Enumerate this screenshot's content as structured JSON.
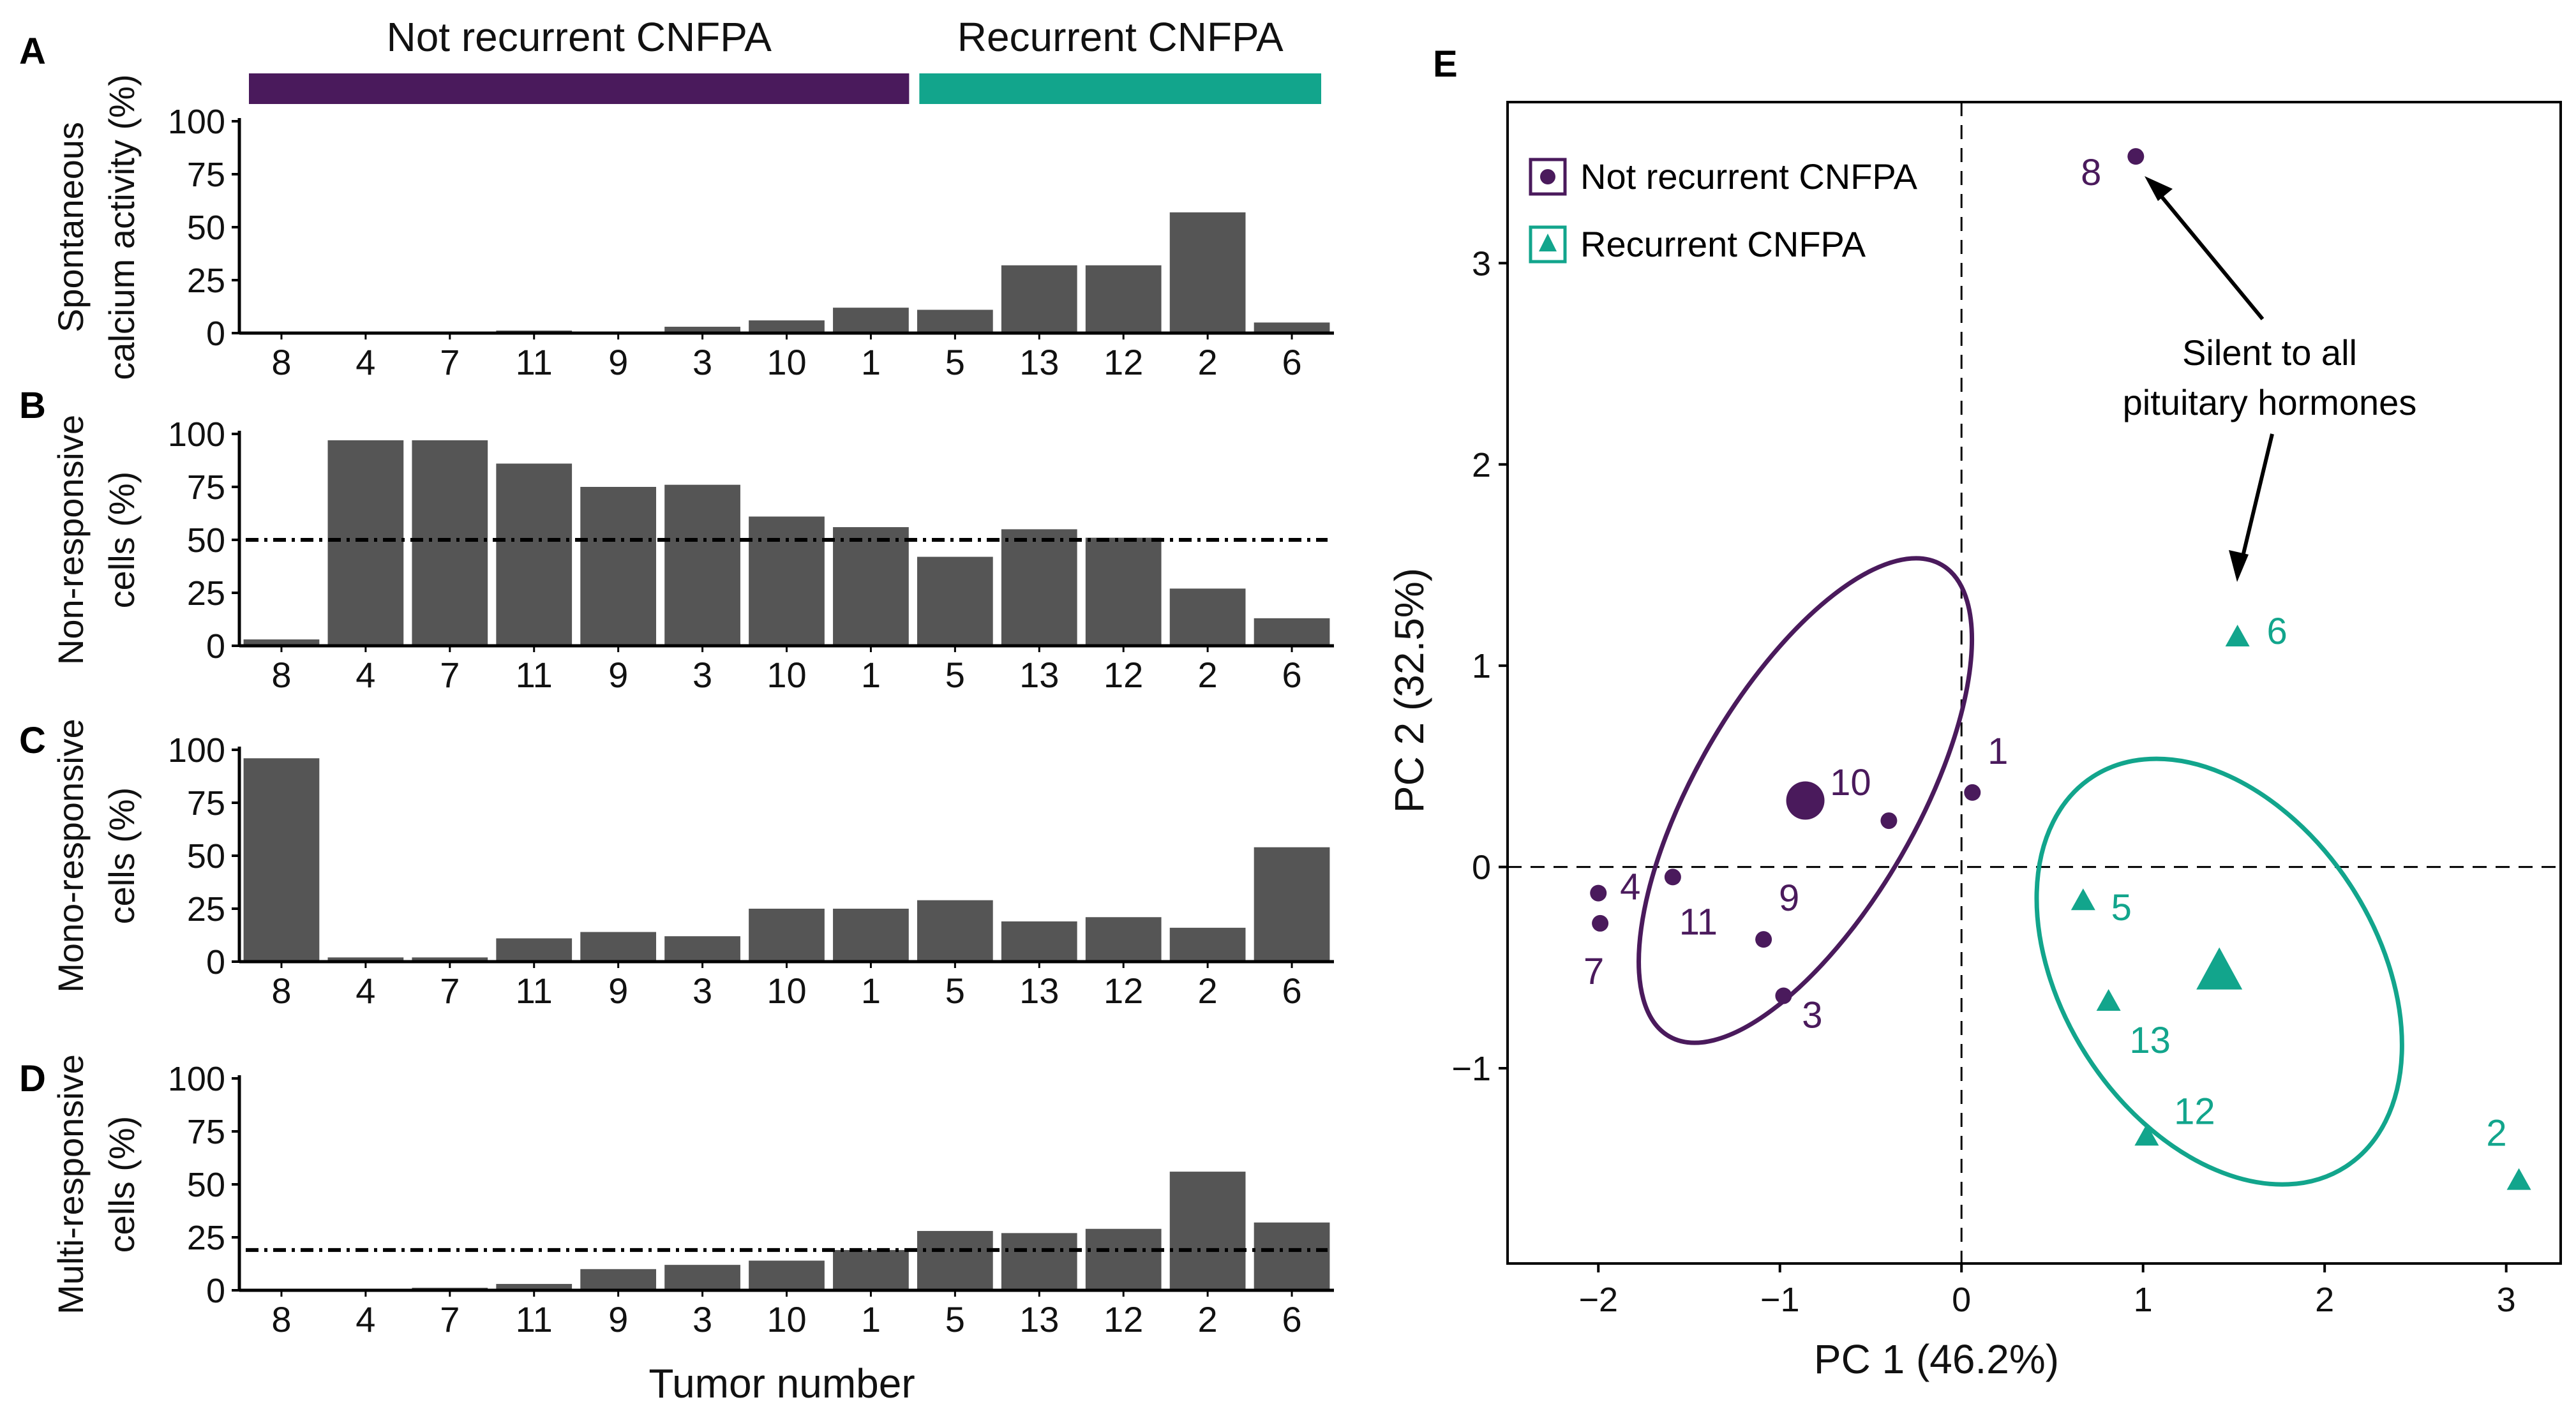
{
  "colors": {
    "not_recurrent": "#4a1a5c",
    "recurrent": "#12a58c",
    "bar": "#555555",
    "axis": "#000000"
  },
  "chart_data": [
    {
      "panel": "A",
      "type": "bar",
      "ylabel": [
        "Spontaneous",
        "calcium activity (%)"
      ],
      "ylim": [
        0,
        100
      ],
      "yticks": [
        0,
        25,
        50,
        75,
        100
      ],
      "categories": [
        "8",
        "4",
        "7",
        "11",
        "9",
        "3",
        "10",
        "1",
        "5",
        "13",
        "12",
        "2",
        "6"
      ],
      "values": [
        0,
        0,
        0,
        1,
        0,
        3,
        6,
        12,
        11,
        32,
        32,
        57,
        5
      ],
      "group_bar": [
        {
          "label": "Not recurrent CNFPA",
          "from": 0,
          "to": 7,
          "color": "not_recurrent"
        },
        {
          "label": "Recurrent CNFPA",
          "from": 8,
          "to": 12,
          "color": "recurrent"
        }
      ]
    },
    {
      "panel": "B",
      "type": "bar",
      "ylabel": [
        "Non-responsive",
        "cells (%)"
      ],
      "ylim": [
        0,
        100
      ],
      "yticks": [
        0,
        25,
        50,
        75,
        100
      ],
      "categories": [
        "8",
        "4",
        "7",
        "11",
        "9",
        "3",
        "10",
        "1",
        "5",
        "13",
        "12",
        "2",
        "6"
      ],
      "values": [
        3,
        97,
        97,
        86,
        75,
        76,
        61,
        56,
        42,
        55,
        51,
        27,
        13
      ],
      "reference_line": 50
    },
    {
      "panel": "C",
      "type": "bar",
      "ylabel": [
        "Mono-responsive",
        "cells (%)"
      ],
      "ylim": [
        0,
        100
      ],
      "yticks": [
        0,
        25,
        50,
        75,
        100
      ],
      "categories": [
        "8",
        "4",
        "7",
        "11",
        "9",
        "3",
        "10",
        "1",
        "5",
        "13",
        "12",
        "2",
        "6"
      ],
      "values": [
        96,
        2,
        2,
        11,
        14,
        12,
        25,
        25,
        29,
        19,
        21,
        16,
        54
      ]
    },
    {
      "panel": "D",
      "type": "bar",
      "ylabel": [
        "Multi-responsive",
        "cells (%)"
      ],
      "ylim": [
        0,
        100
      ],
      "yticks": [
        0,
        25,
        50,
        75,
        100
      ],
      "categories": [
        "8",
        "4",
        "7",
        "11",
        "9",
        "3",
        "10",
        "1",
        "5",
        "13",
        "12",
        "2",
        "6"
      ],
      "values": [
        0,
        0,
        1,
        3,
        10,
        12,
        14,
        19,
        28,
        27,
        29,
        56,
        32
      ],
      "reference_line": 19,
      "xlabel": "Tumor number"
    },
    {
      "panel": "E",
      "type": "scatter",
      "xlabel": "PC 1 (46.2%)",
      "ylabel": "PC 2 (32.5%)",
      "xlim": [
        -2.5,
        3.3
      ],
      "ylim": [
        -1.97,
        3.8
      ],
      "xticks": [
        -2,
        -1,
        0,
        1,
        2,
        3
      ],
      "xtick_labels": [
        "−2",
        "−1",
        "0",
        "1",
        "2",
        "3"
      ],
      "yticks": [
        -1,
        0,
        1,
        2,
        3
      ],
      "ytick_labels": [
        "−1",
        "0",
        "1",
        "2",
        "3"
      ],
      "legend": [
        {
          "label": "Not recurrent CNFPA",
          "marker": "circle",
          "color": "not_recurrent"
        },
        {
          "label": "Recurrent CNFPA",
          "marker": "triangle",
          "color": "recurrent"
        }
      ],
      "series": [
        {
          "name": "Not recurrent CNFPA",
          "marker": "circle",
          "color": "not_recurrent",
          "points": [
            {
              "label": "8",
              "x": 0.96,
              "y": 3.53
            },
            {
              "label": "1",
              "x": 0.06,
              "y": 0.37
            },
            {
              "label": "10",
              "x": -0.4,
              "y": 0.23
            },
            {
              "label": "4",
              "x": -2.0,
              "y": -0.13
            },
            {
              "label": "7",
              "x": -1.99,
              "y": -0.28
            },
            {
              "label": "11",
              "x": -1.59,
              "y": -0.05
            },
            {
              "label": "9",
              "x": -1.09,
              "y": -0.36
            },
            {
              "label": "3",
              "x": -0.98,
              "y": -0.64
            }
          ],
          "centroid": {
            "x": -0.86,
            "y": 0.33
          },
          "ellipse": {
            "cx": -0.86,
            "cy": 0.33,
            "rx": 1.5,
            "ry": 0.55,
            "angle_deg": 60
          }
        },
        {
          "name": "Recurrent CNFPA",
          "marker": "triangle",
          "color": "recurrent",
          "points": [
            {
              "label": "6",
              "x": 1.52,
              "y": 1.14
            },
            {
              "label": "5",
              "x": 0.67,
              "y": -0.17
            },
            {
              "label": "13",
              "x": 0.81,
              "y": -0.67
            },
            {
              "label": "12",
              "x": 1.02,
              "y": -1.34
            },
            {
              "label": "2",
              "x": 3.07,
              "y": -1.56
            }
          ],
          "centroid": {
            "x": 1.42,
            "y": -0.52
          },
          "ellipse": {
            "cx": 1.42,
            "cy": -0.52,
            "rx": 1.28,
            "ry": 0.78,
            "angle_deg": -57
          }
        }
      ],
      "annotation": {
        "lines": [
          "Silent to all",
          "pituitary hormones"
        ],
        "targets": [
          "8",
          "6"
        ]
      }
    }
  ]
}
